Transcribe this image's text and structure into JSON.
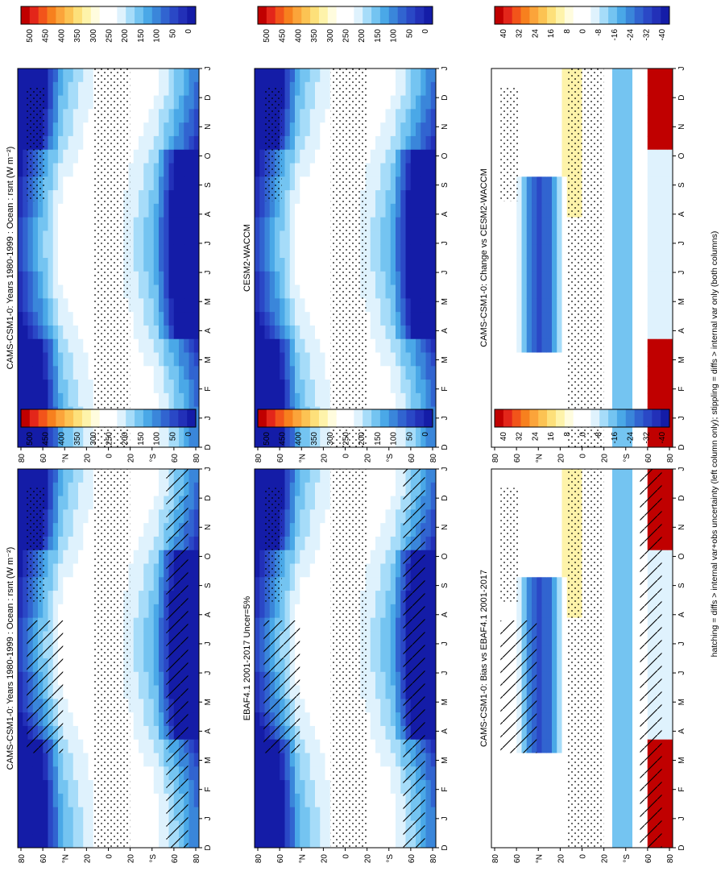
{
  "figure": {
    "footnote": "hatching = diffs > internal var+obs uncertainty (left column only); stippling = diffs > internal var only (both columns)"
  },
  "axes": {
    "months": [
      "D",
      "J",
      "F",
      "M",
      "A",
      "M",
      "J",
      "J",
      "A",
      "S",
      "O",
      "N",
      "D",
      "J"
    ],
    "lat_ticks": [
      "80",
      "60",
      "°N",
      "20",
      "0",
      "20",
      "°S",
      "60",
      "80"
    ]
  },
  "colorbars": {
    "flux": [
      "500",
      "450",
      "400",
      "350",
      "300",
      "250",
      "200",
      "150",
      "100",
      "50",
      "0"
    ],
    "diff": [
      "40",
      "32",
      "24",
      "16",
      "8",
      "0",
      "-8",
      "-16",
      "-24",
      "-32",
      "-40"
    ]
  },
  "colors": {
    "scale": [
      "#c00000",
      "#e3261a",
      "#f2541a",
      "#f7801e",
      "#fba43a",
      "#fcc353",
      "#fde07a",
      "#fef3aa",
      "#fffcde",
      "#ffffff",
      "#ffffff",
      "#dff2fd",
      "#a6dcf9",
      "#74c4f1",
      "#4aa8e7",
      "#3a86da",
      "#3164d0",
      "#2a48c6",
      "#2230b8",
      "#141ca7"
    ],
    "hatch": "#000000"
  },
  "chart_data": [
    {
      "type": "heatmap",
      "id": "model-bias-left",
      "title": "CAMS-CSM1-0: Years 1980-1999 : Ocean : rsnt (W m⁻²)",
      "xlabel": "",
      "ylabel": "",
      "scale": "flux",
      "hatching": true,
      "stippling": true
    },
    {
      "type": "heatmap",
      "id": "model-right",
      "title": "CAMS-CSM1-0: Years 1980-1999 : Ocean : rsnt (W m⁻²)",
      "xlabel": "",
      "ylabel": "",
      "scale": "flux",
      "hatching": false,
      "stippling": true
    },
    {
      "type": "heatmap",
      "id": "obs",
      "title": "EBAF4.1 2001-2017 Uncer=5%",
      "xlabel": "",
      "ylabel": "",
      "scale": "flux",
      "hatching": true,
      "stippling": true
    },
    {
      "type": "heatmap",
      "id": "ref-model",
      "title": "CESM2-WACCM",
      "xlabel": "",
      "ylabel": "",
      "scale": "flux",
      "hatching": false,
      "stippling": true
    },
    {
      "type": "heatmap",
      "id": "bias",
      "title": "CAMS-CSM1-0: Bias vs EBAF4.1 2001-2017",
      "xlabel": "",
      "ylabel": "",
      "scale": "diff",
      "hatching": true,
      "stippling": true
    },
    {
      "type": "heatmap",
      "id": "change",
      "title": "CAMS-CSM1-0: Change vs CESM2-WACCM",
      "xlabel": "",
      "ylabel": "",
      "scale": "diff",
      "hatching": false,
      "stippling": true
    }
  ]
}
